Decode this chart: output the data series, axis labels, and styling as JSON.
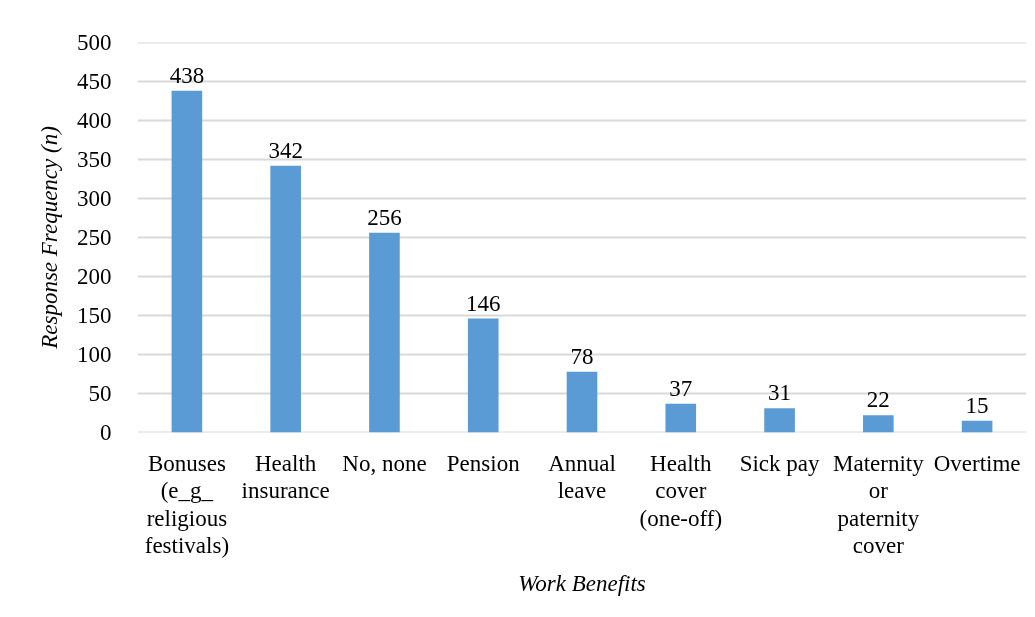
{
  "chart_data": {
    "type": "bar",
    "xlabel": "Work Benefits",
    "ylabel": "Response Frequency (n)",
    "categories": [
      "Bonuses (e_g_ religious festivals)",
      "Health insurance",
      "No, none",
      "Pension",
      "Annual leave",
      "Health cover (one-off)",
      "Sick pay",
      "Maternity or paternity cover",
      "Overtime"
    ],
    "values": [
      438,
      342,
      256,
      146,
      78,
      37,
      31,
      22,
      15
    ],
    "color": "#5b9bd5",
    "ylim": [
      0,
      500
    ],
    "yticks": [
      0,
      50,
      100,
      150,
      200,
      250,
      300,
      350,
      400,
      450,
      500
    ],
    "grid": "y",
    "data_labels": true
  }
}
